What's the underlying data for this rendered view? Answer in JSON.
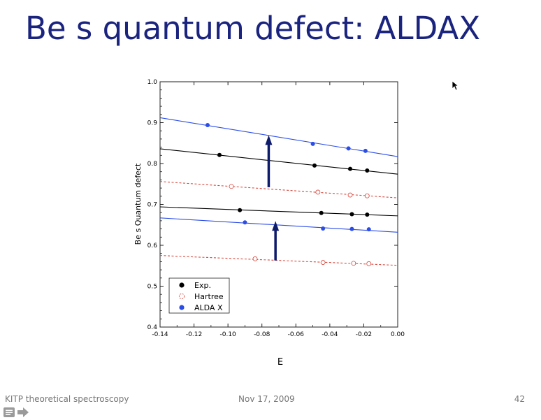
{
  "slide": {
    "title": "Be s quantum defect: ALDAX",
    "footer_left": "KITP theoretical spectroscopy",
    "footer_center": "Nov 17, 2009",
    "footer_right": "42"
  },
  "icons": {
    "nav_menu": "menu-icon",
    "nav_next": "arrow-right-icon",
    "pointer": "mouse-cursor-icon"
  },
  "chart_data": {
    "type": "scatter",
    "xlabel": "E",
    "ylabel": "Be s Quantum defect",
    "xlim": [
      -0.14,
      0.0
    ],
    "ylim": [
      0.4,
      1.0
    ],
    "x_ticks": [
      -0.14,
      -0.12,
      -0.1,
      -0.08,
      -0.06,
      -0.04,
      -0.02,
      0.0
    ],
    "x_tick_labels": [
      "-0.14",
      "-0.12",
      "-0.10",
      "-0.08",
      "-0.06",
      "-0.04",
      "-0.02",
      "0.00"
    ],
    "y_ticks": [
      0.4,
      0.5,
      0.6,
      0.7,
      0.8,
      0.9,
      1.0
    ],
    "y_tick_labels": [
      "0.4",
      "0.5",
      "0.6",
      "0.7",
      "0.8",
      "0.9",
      "1.0"
    ],
    "legend_position": "bottom-left",
    "series": [
      {
        "name": "Exp.",
        "color": "#000000",
        "marker": "filled-circle",
        "groups": [
          {
            "x": [
              -0.105,
              -0.049,
              -0.028,
              -0.018
            ],
            "y": [
              0.821,
              0.795,
              0.787,
              0.783
            ],
            "fit": [
              [
                -0.14,
                0.836
              ],
              [
                0.0,
                0.774
              ]
            ]
          },
          {
            "x": [
              -0.093,
              -0.045,
              -0.027,
              -0.018
            ],
            "y": [
              0.686,
              0.679,
              0.676,
              0.675
            ],
            "fit": [
              [
                -0.14,
                0.694
              ],
              [
                0.0,
                0.672
              ]
            ]
          }
        ]
      },
      {
        "name": "Hartree",
        "color": "#d9463b",
        "marker": "open-circle",
        "dashed": true,
        "groups": [
          {
            "x": [
              -0.098,
              -0.047,
              -0.028,
              -0.018
            ],
            "y": [
              0.744,
              0.73,
              0.723,
              0.721
            ],
            "fit": [
              [
                -0.14,
                0.756
              ],
              [
                0.0,
                0.716
              ]
            ]
          },
          {
            "x": [
              -0.084,
              -0.044,
              -0.026,
              -0.017
            ],
            "y": [
              0.567,
              0.558,
              0.556,
              0.555
            ],
            "fit": [
              [
                -0.14,
                0.575
              ],
              [
                0.0,
                0.551
              ]
            ]
          }
        ]
      },
      {
        "name": "ALDA X",
        "color": "#2b4de6",
        "marker": "filled-circle",
        "groups": [
          {
            "x": [
              -0.112,
              -0.05,
              -0.029,
              -0.019
            ],
            "y": [
              0.894,
              0.848,
              0.837,
              0.831
            ],
            "fit": [
              [
                -0.14,
                0.912
              ],
              [
                0.0,
                0.817
              ]
            ]
          },
          {
            "x": [
              -0.09,
              -0.044,
              -0.027,
              -0.017
            ],
            "y": [
              0.656,
              0.641,
              0.64,
              0.639
            ],
            "fit": [
              [
                -0.14,
                0.667
              ],
              [
                0.0,
                0.632
              ]
            ]
          }
        ]
      }
    ],
    "annotations": [
      {
        "type": "arrow",
        "color": "#0d1b6b",
        "x": -0.076,
        "y_from": 0.742,
        "y_to": 0.866
      },
      {
        "type": "arrow",
        "color": "#0d1b6b",
        "x": -0.072,
        "y_from": 0.563,
        "y_to": 0.656
      }
    ]
  }
}
